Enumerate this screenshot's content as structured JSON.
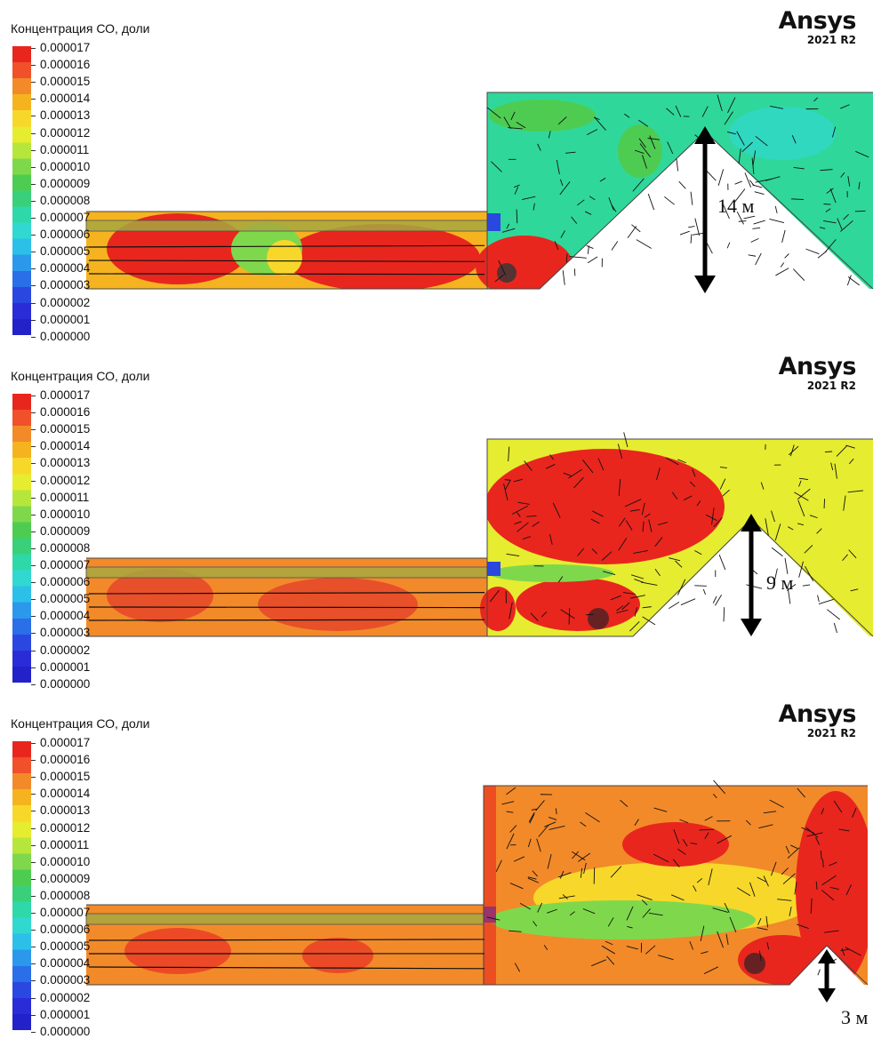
{
  "legend": {
    "title": "Концентрация СО, доли",
    "ticks": [
      "0.000017",
      "0.000016",
      "0.000015",
      "0.000014",
      "0.000013",
      "0.000012",
      "0.000011",
      "0.000010",
      "0.000009",
      "0.000008",
      "0.000007",
      "0.000006",
      "0.000005",
      "0.000004",
      "0.000003",
      "0.000002",
      "0.000001",
      "0.000000"
    ],
    "colors": [
      "#e8261e",
      "#f0502a",
      "#f28a2a",
      "#f5b320",
      "#f7d82a",
      "#e6ec30",
      "#b6e63c",
      "#7fd84c",
      "#4ecc52",
      "#3ad07a",
      "#2fd8a8",
      "#30d8d0",
      "#2cc0e8",
      "#2b98ec",
      "#2a6ee8",
      "#2a48e0",
      "#2a2cd8",
      "#2222c8"
    ]
  },
  "brand": {
    "name": "Ansys",
    "version": "2021 R2"
  },
  "panels": [
    {
      "height_label": "14 м"
    },
    {
      "height_label": "9 м"
    },
    {
      "height_label": "3 м"
    }
  ]
}
